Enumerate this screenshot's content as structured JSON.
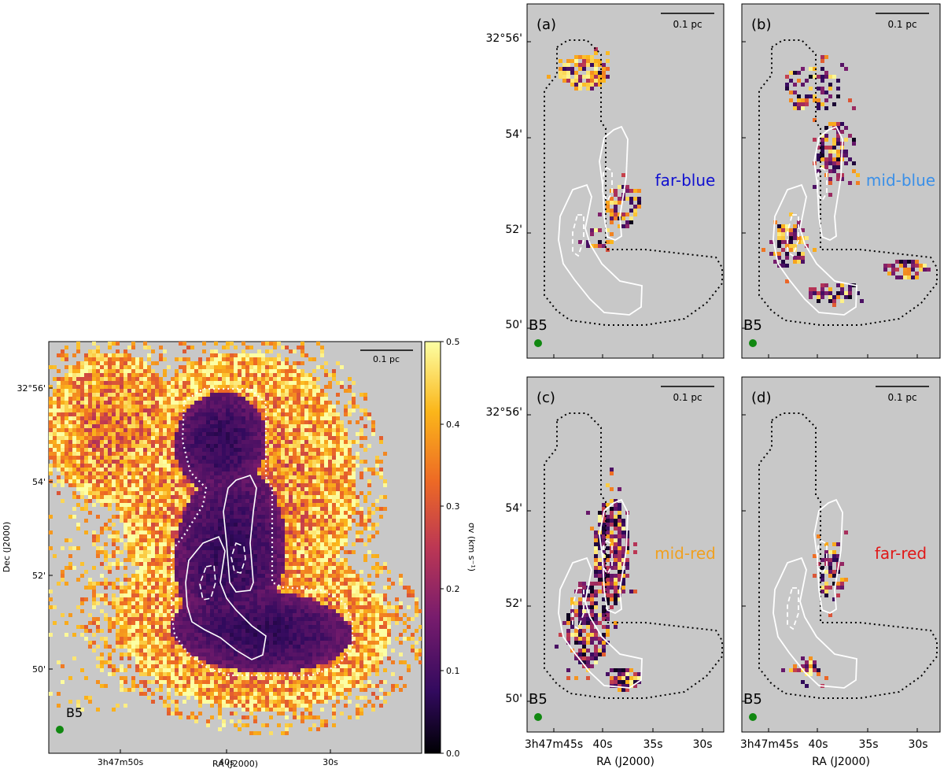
{
  "chart_data": [
    {
      "type": "heatmap",
      "panel_id": "main",
      "source_label": "B5",
      "scale_bar_label": "0.1 pc",
      "xlabel": "RA (J2000)",
      "ylabel": "Dec (J2000)",
      "xtick_labels": [
        "3h47m50s",
        "40s",
        "30s"
      ],
      "ytick_labels": [
        "32°56'",
        "54'",
        "52'",
        "50'"
      ],
      "colorbar": {
        "label": "σv (km s⁻¹)",
        "range": [
          0.0,
          0.5
        ],
        "tick_labels": [
          "0.0",
          "0.1",
          "0.2",
          "0.3",
          "0.4",
          "0.5"
        ],
        "colormap": [
          "#000004",
          "#320a5e",
          "#781c6d",
          "#bc3754",
          "#ed6925",
          "#fbb61a",
          "#fcffa4"
        ]
      }
    },
    {
      "type": "heatmap",
      "panel_id": "a",
      "panel_label": "(a)",
      "component_label": "far-blue",
      "component_color": "#1010d0",
      "source_label": "B5",
      "scale_bar_label": "0.1 pc"
    },
    {
      "type": "heatmap",
      "panel_id": "b",
      "panel_label": "(b)",
      "component_label": "mid-blue",
      "component_color": "#3a8fe8",
      "source_label": "B5",
      "scale_bar_label": "0.1 pc"
    },
    {
      "type": "heatmap",
      "panel_id": "c",
      "panel_label": "(c)",
      "component_label": "mid-red",
      "component_color": "#f0a020",
      "source_label": "B5",
      "scale_bar_label": "0.1 pc"
    },
    {
      "type": "heatmap",
      "panel_id": "d",
      "panel_label": "(d)",
      "component_label": "far-red",
      "component_color": "#e01818",
      "source_label": "B5",
      "scale_bar_label": "0.1 pc"
    }
  ],
  "grid_axes": {
    "xlabel": "RA (J2000)",
    "xtick_labels": [
      "3h47m45s",
      "40s",
      "35s",
      "30s"
    ],
    "ytick_labels": [
      "32°56'",
      "54'",
      "52'",
      "50'"
    ]
  },
  "colors": {
    "background": "#c8c8c8",
    "contour": "#ffffff",
    "beam": "#118811",
    "region": "#000000"
  }
}
